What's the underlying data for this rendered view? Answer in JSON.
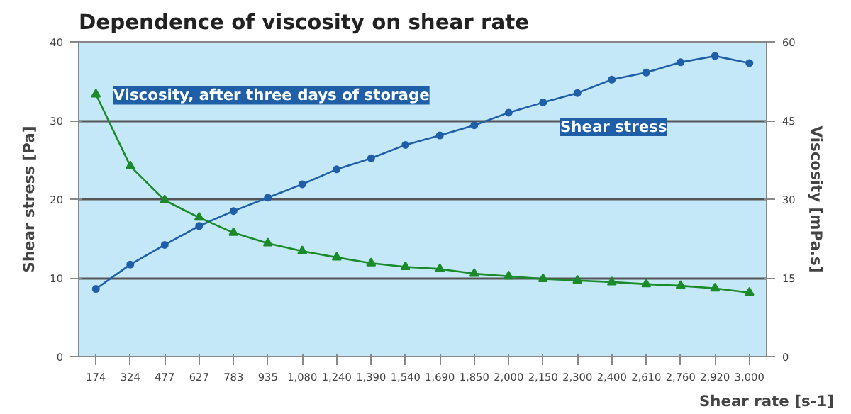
{
  "chart_data": {
    "type": "line",
    "title": "Dependence of viscosity on shear rate",
    "xlabel": "Shear rate [s-1]",
    "ylabel": "Shear stress [Pa]",
    "y2label": "Viscosity [mPa.s]",
    "categories": [
      "174",
      "324",
      "477",
      "627",
      "783",
      "935",
      "1,080",
      "1,240",
      "1,390",
      "1,540",
      "1,690",
      "1,850",
      "2,000",
      "2,150",
      "2,300",
      "2,400",
      "2,610",
      "2,760",
      "2,920",
      "3,000"
    ],
    "series": [
      {
        "name": "Shear stress",
        "color": "#1f5fa8",
        "marker": "circle",
        "values": [
          8.6,
          11.7,
          14.2,
          16.6,
          18.5,
          20.2,
          21.9,
          23.8,
          25.2,
          26.9,
          28.1,
          29.4,
          31.0,
          32.3,
          33.5,
          35.2,
          36.1,
          37.4,
          38.2,
          37.3
        ]
      },
      {
        "name": "Viscosity, after three days of storage",
        "color": "#1a8a2a",
        "marker": "triangle",
        "axis": "y2",
        "values": [
          50,
          36.3,
          29.8,
          26.5,
          23.6,
          21.6,
          20.1,
          18.9,
          17.8,
          17.1,
          16.7,
          15.8,
          15.3,
          14.8,
          14.5,
          14.2,
          13.8,
          13.5,
          13.0,
          12.2
        ]
      }
    ],
    "ylim": [
      0,
      40
    ],
    "yticks": [
      0,
      10,
      20,
      30,
      40
    ],
    "y2lim": [
      0,
      60
    ],
    "y2ticks": [
      0,
      15,
      30,
      45,
      60
    ],
    "grid": "y"
  }
}
